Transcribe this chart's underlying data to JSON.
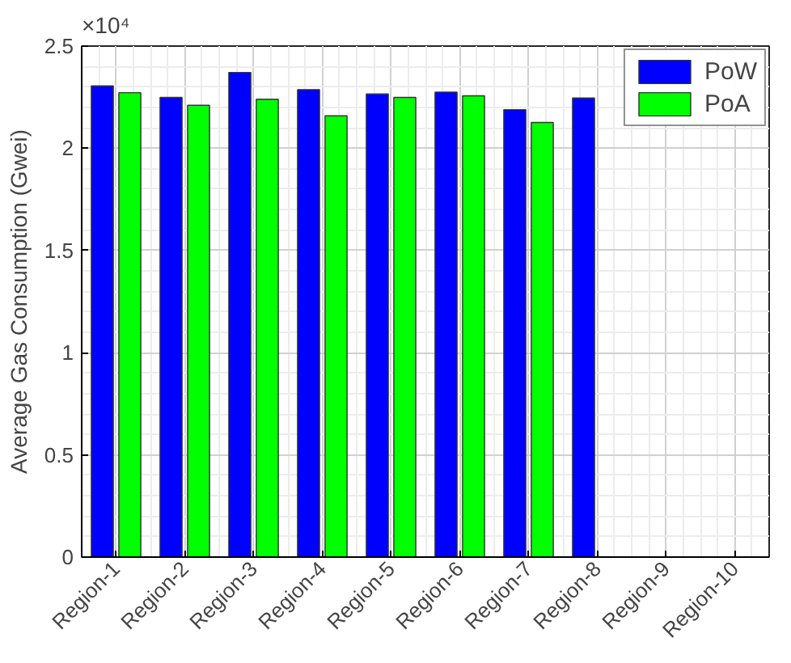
{
  "chart_data": {
    "type": "bar",
    "ylabel": "Average Gas Consumption (Gwei)",
    "categories": [
      "Region-1",
      "Region-2",
      "Region-3",
      "Region-4",
      "Region-5",
      "Region-6",
      "Region-7",
      "Region-8",
      "Region-9",
      "Region-10"
    ],
    "series": [
      {
        "name": "PoW",
        "color": "#0000ff",
        "values": [
          2.305,
          2.249,
          2.371,
          2.287,
          2.266,
          2.275,
          2.189,
          2.246,
          null,
          null
        ]
      },
      {
        "name": "PoA",
        "color": "#00ff00",
        "values": [
          2.272,
          2.21,
          2.24,
          2.159,
          2.249,
          2.257,
          2.126,
          null,
          null,
          null
        ]
      }
    ],
    "ylim": [
      0,
      2.5
    ],
    "yticks": [
      0,
      0.5,
      1,
      1.5,
      2,
      2.5
    ],
    "annotations": [
      "×10⁴"
    ],
    "grid": true,
    "legend": "top right"
  }
}
